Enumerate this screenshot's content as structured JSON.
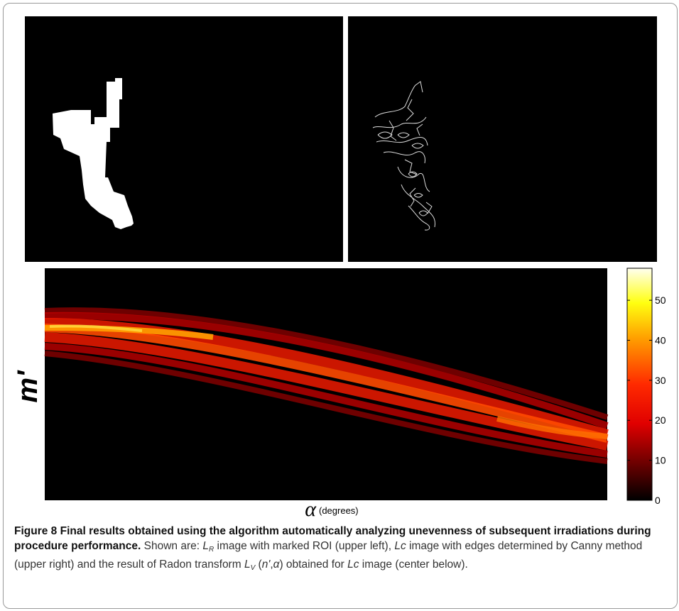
{
  "figure": {
    "radon": {
      "ylabel": "m'",
      "xlabel_symbol": "α",
      "xlabel_unit": "(degrees)"
    },
    "colorbar": {
      "lim": [
        0,
        58
      ],
      "ticks": [
        0,
        10,
        20,
        30,
        40,
        50
      ]
    },
    "caption": {
      "label": "Figure 8",
      "title": "Final results obtained using the algorithm automatically analyzing unevenness of subsequent irradiations during procedure performance.",
      "runs": [
        {
          "text": "Shown are: ",
          "style": "plain"
        },
        {
          "text": "L",
          "style": "italic"
        },
        {
          "text": "R",
          "style": "sub"
        },
        {
          "text": " image with marked ROI (upper left), ",
          "style": "plain"
        },
        {
          "text": "Lc",
          "style": "italic"
        },
        {
          "text": " image with edges determined by Canny method (upper right) and the result of Radon transform ",
          "style": "plain"
        },
        {
          "text": "L",
          "style": "italic"
        },
        {
          "text": "V",
          "style": "sub"
        },
        {
          "text": " (",
          "style": "plain"
        },
        {
          "text": "n'",
          "style": "italic"
        },
        {
          "text": ",",
          "style": "plain"
        },
        {
          "text": "α",
          "style": "italic"
        },
        {
          "text": ") obtained for ",
          "style": "plain"
        },
        {
          "text": "Lc",
          "style": "italic"
        },
        {
          "text": " image (center below).",
          "style": "plain"
        }
      ]
    }
  }
}
